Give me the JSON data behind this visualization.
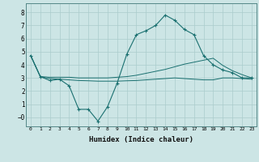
{
  "title": "",
  "xlabel": "Humidex (Indice chaleur)",
  "ylabel": "",
  "background_color": "#cce5e5",
  "grid_color": "#aacccc",
  "line_color": "#1a7070",
  "xlim": [
    -0.5,
    23.5
  ],
  "ylim": [
    -0.7,
    8.7
  ],
  "xticks": [
    0,
    1,
    2,
    3,
    4,
    5,
    6,
    7,
    8,
    9,
    10,
    11,
    12,
    13,
    14,
    15,
    16,
    17,
    18,
    19,
    20,
    21,
    22,
    23
  ],
  "yticks": [
    0,
    1,
    2,
    3,
    4,
    5,
    6,
    7,
    8
  ],
  "ytick_labels": [
    "−0",
    "1",
    "2",
    "3",
    "4",
    "5",
    "6",
    "7",
    "8"
  ],
  "line1_x": [
    0,
    1,
    2,
    3,
    4,
    5,
    6,
    7,
    8,
    9,
    10,
    11,
    12,
    13,
    14,
    15,
    16,
    17,
    18,
    19,
    20,
    21,
    22,
    23
  ],
  "line1_y": [
    4.7,
    3.1,
    2.8,
    2.9,
    2.4,
    0.6,
    0.6,
    -0.3,
    0.8,
    2.6,
    4.8,
    6.3,
    6.6,
    7.0,
    7.8,
    7.4,
    6.7,
    6.3,
    4.7,
    4.0,
    3.6,
    3.4,
    3.0,
    3.0
  ],
  "line2_x": [
    0,
    1,
    2,
    3,
    4,
    5,
    6,
    7,
    8,
    9,
    10,
    11,
    12,
    13,
    14,
    15,
    16,
    17,
    18,
    19,
    20,
    21,
    22,
    23
  ],
  "line2_y": [
    4.7,
    3.1,
    3.05,
    3.05,
    3.05,
    3.0,
    3.0,
    3.0,
    3.0,
    3.05,
    3.1,
    3.2,
    3.35,
    3.5,
    3.65,
    3.85,
    4.05,
    4.2,
    4.35,
    4.5,
    3.95,
    3.55,
    3.25,
    3.0
  ],
  "line3_x": [
    0,
    1,
    2,
    3,
    4,
    5,
    6,
    7,
    8,
    9,
    10,
    11,
    12,
    13,
    14,
    15,
    16,
    17,
    18,
    19,
    20,
    21,
    22,
    23
  ],
  "line3_y": [
    4.7,
    3.1,
    2.95,
    2.9,
    2.85,
    2.8,
    2.78,
    2.75,
    2.75,
    2.75,
    2.78,
    2.8,
    2.85,
    2.9,
    2.95,
    3.0,
    2.95,
    2.9,
    2.85,
    2.85,
    3.0,
    3.0,
    2.95,
    2.9
  ]
}
